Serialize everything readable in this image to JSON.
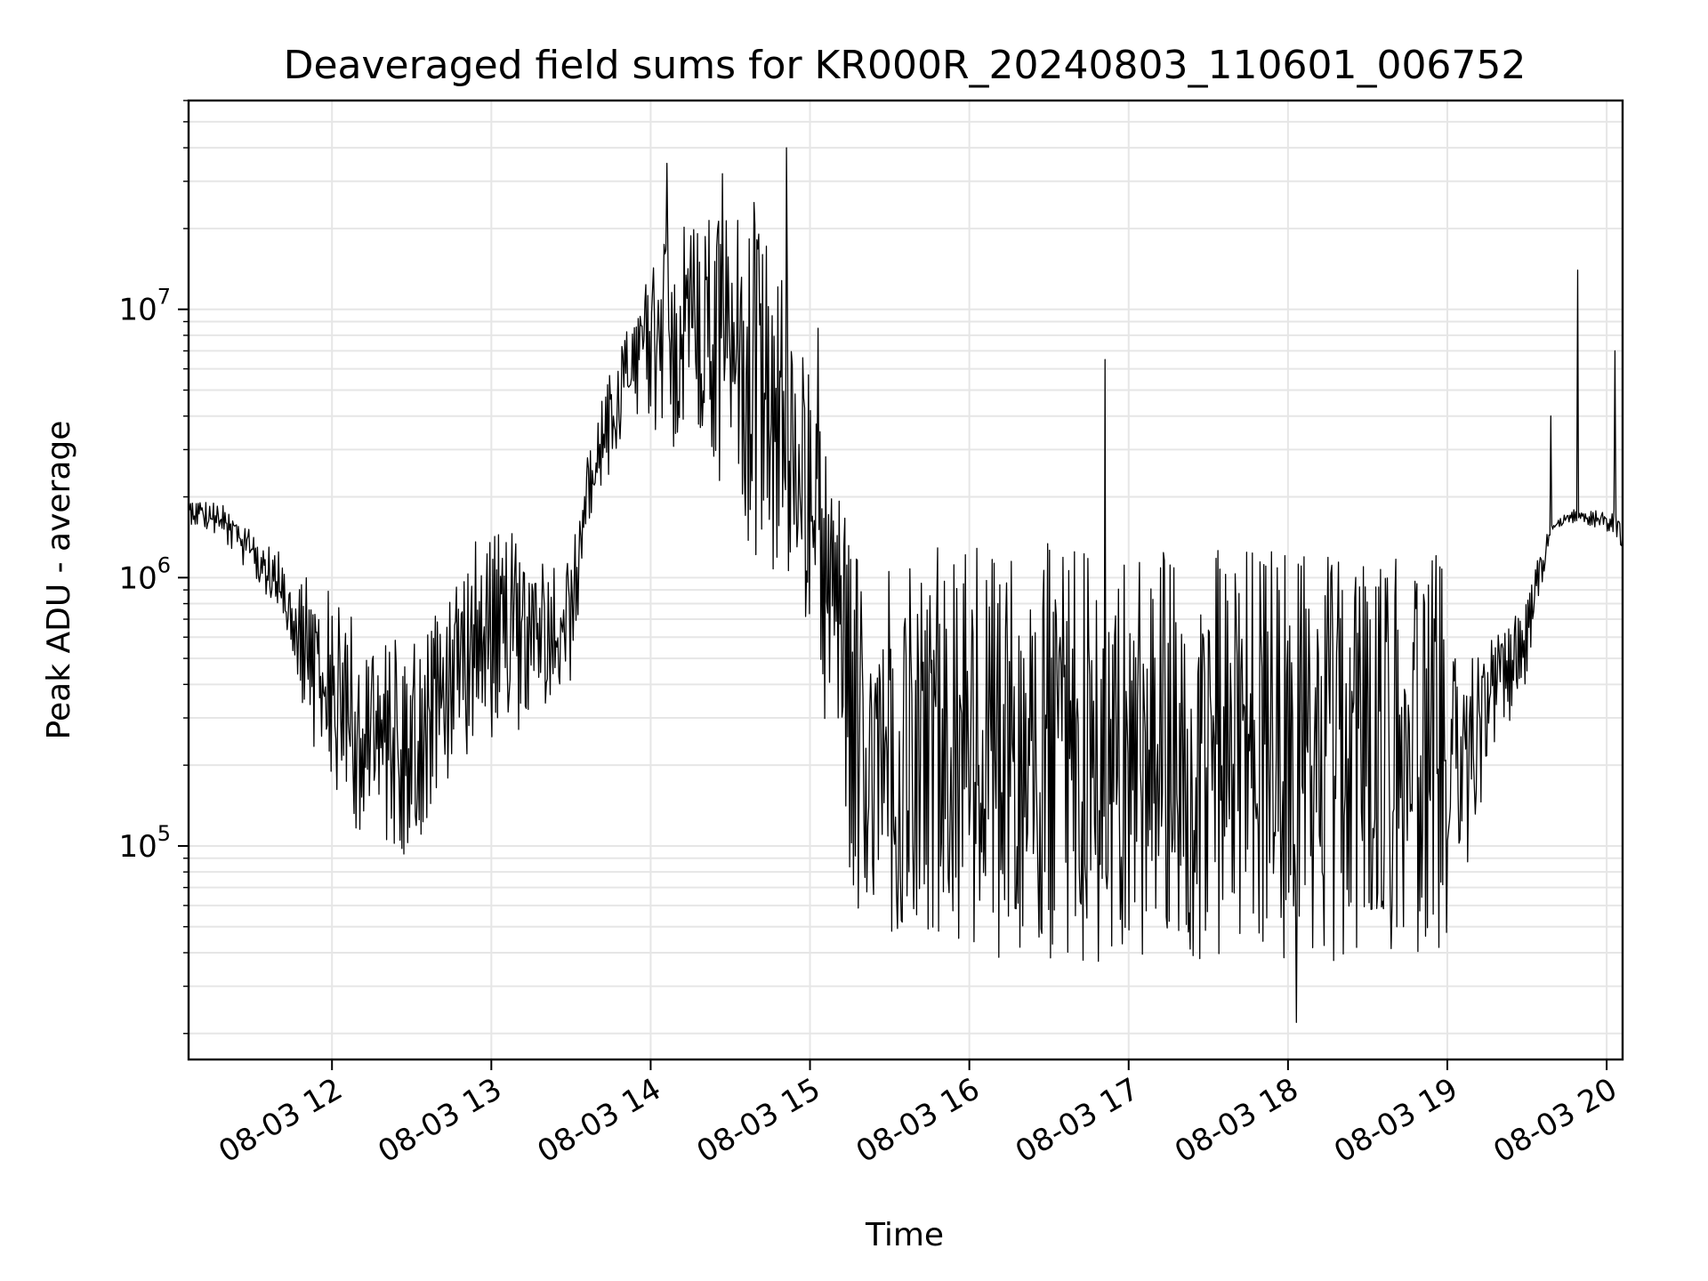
{
  "chart_data": {
    "type": "line",
    "title": "Deaveraged field sums for KR000R_20240803_110601_006752",
    "xlabel": "Time",
    "ylabel": "Peak ADU - average",
    "x_unit": "time of day (hours), 2024-08-03",
    "xlim": [
      11.1,
      20.1
    ],
    "ylog": true,
    "ylim": [
      16000,
      60000000
    ],
    "grid": true,
    "line_color": "#000000",
    "grid_color": "#e6e6e6",
    "x_ticks": [
      {
        "value": 12,
        "label": "08-03 12"
      },
      {
        "value": 13,
        "label": "08-03 13"
      },
      {
        "value": 14,
        "label": "08-03 14"
      },
      {
        "value": 15,
        "label": "08-03 15"
      },
      {
        "value": 16,
        "label": "08-03 16"
      },
      {
        "value": 17,
        "label": "08-03 17"
      },
      {
        "value": 18,
        "label": "08-03 18"
      },
      {
        "value": 19,
        "label": "08-03 19"
      },
      {
        "value": 20,
        "label": "08-03 20"
      }
    ],
    "y_ticks": [
      {
        "value": 100000,
        "base": "10",
        "exp": "5"
      },
      {
        "value": 1000000,
        "base": "10",
        "exp": "6"
      },
      {
        "value": 10000000,
        "base": "10",
        "exp": "7"
      }
    ],
    "envelope": {
      "description": "approximate upper/lower envelope of the rapidly oscillating signal",
      "t": [
        11.1,
        11.3,
        11.5,
        11.7,
        11.9,
        12.1,
        12.3,
        12.5,
        12.7,
        12.9,
        13.1,
        13.3,
        13.5,
        13.6,
        13.75,
        13.9,
        14.1,
        14.3,
        14.5,
        14.7,
        14.85,
        15.0,
        15.15,
        15.25,
        15.4,
        15.6,
        16.0,
        16.5,
        17.0,
        17.5,
        18.0,
        18.5,
        18.9,
        19.05,
        19.15,
        19.3,
        19.5,
        19.65,
        19.8,
        20.0,
        20.1
      ],
      "upper": [
        2000000,
        1900000,
        1500000,
        1200000,
        1000000,
        800000,
        600000,
        600000,
        1000000,
        1400000,
        1500000,
        1300000,
        1200000,
        3000000,
        6000000,
        10000000,
        20000000,
        25000000,
        25000000,
        20000000,
        12000000,
        6000000,
        2500000,
        1500000,
        1350000,
        1350000,
        1350000,
        1350000,
        1350000,
        1350000,
        1350000,
        1350000,
        1350000,
        900000,
        500000,
        600000,
        900000,
        1600000,
        1800000,
        1800000,
        1800000
      ],
      "lower": [
        1600000,
        1400000,
        1000000,
        700000,
        200000,
        120000,
        100000,
        90000,
        150000,
        250000,
        250000,
        300000,
        400000,
        1500000,
        2500000,
        4000000,
        3000000,
        3000000,
        2000000,
        1000000,
        1000000,
        500000,
        200000,
        60000,
        45000,
        40000,
        35000,
        35000,
        35000,
        35000,
        35000,
        35000,
        40000,
        45000,
        100000,
        200000,
        400000,
        1500000,
        1600000,
        1500000,
        1000000
      ]
    },
    "spikes": [
      {
        "t": 14.85,
        "value": 40000000
      },
      {
        "t": 14.1,
        "value": 35000000
      },
      {
        "t": 14.45,
        "value": 32000000
      },
      {
        "t": 14.65,
        "value": 25000000
      },
      {
        "t": 19.82,
        "value": 14000000
      },
      {
        "t": 15.05,
        "value": 8500000
      },
      {
        "t": 16.85,
        "value": 6500000
      },
      {
        "t": 20.05,
        "value": 7000000
      },
      {
        "t": 19.65,
        "value": 4000000
      },
      {
        "t": 18.05,
        "value": 22000
      }
    ]
  }
}
